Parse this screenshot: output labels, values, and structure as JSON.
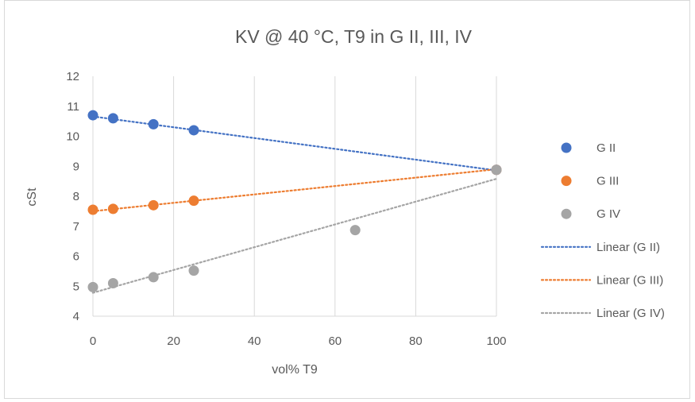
{
  "chart_data": {
    "type": "scatter",
    "title": "KV @ 40 °C, T9 in G II, III, IV",
    "xlabel": "vol% T9",
    "ylabel": "cSt",
    "xlim": [
      0,
      100
    ],
    "ylim": [
      4,
      12
    ],
    "xticks": [
      0,
      20,
      40,
      60,
      80,
      100
    ],
    "yticks": [
      4,
      5,
      6,
      7,
      8,
      9,
      10,
      11,
      12
    ],
    "grid": "vertical",
    "legend_position": "right",
    "series": [
      {
        "name": "G II",
        "color": "#4472c4",
        "points": [
          [
            0,
            10.7
          ],
          [
            5,
            10.6
          ],
          [
            15,
            10.4
          ],
          [
            25,
            10.2
          ],
          [
            100,
            8.88
          ]
        ]
      },
      {
        "name": "G III",
        "color": "#ed7d31",
        "points": [
          [
            0,
            7.55
          ],
          [
            5,
            7.58
          ],
          [
            15,
            7.7
          ],
          [
            25,
            7.85
          ],
          [
            100,
            8.88
          ]
        ]
      },
      {
        "name": "G IV",
        "color": "#a5a5a5",
        "points": [
          [
            0,
            4.97
          ],
          [
            5,
            5.1
          ],
          [
            15,
            5.3
          ],
          [
            25,
            5.52
          ],
          [
            65,
            6.87
          ],
          [
            100,
            8.88
          ]
        ]
      }
    ],
    "trendlines": [
      {
        "name": "Linear (G II)",
        "color": "#4472c4",
        "from": [
          0,
          10.66
        ],
        "to": [
          100,
          8.86
        ]
      },
      {
        "name": "Linear (G III)",
        "color": "#ed7d31",
        "from": [
          0,
          7.5
        ],
        "to": [
          100,
          8.9
        ]
      },
      {
        "name": "Linear (G IV)",
        "color": "#a5a5a5",
        "from": [
          0,
          4.78
        ],
        "to": [
          100,
          8.58
        ]
      }
    ]
  }
}
